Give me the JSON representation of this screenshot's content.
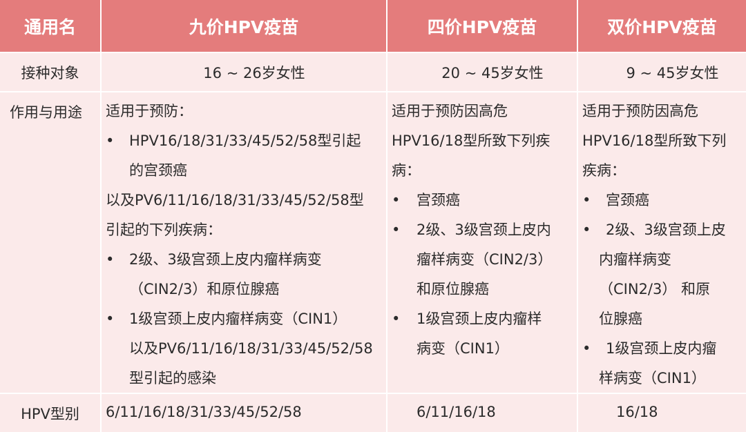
{
  "colors": {
    "header_bg": "#e47c7c",
    "body_bg": "#fbeaea",
    "border": "#ffffff"
  },
  "header": [
    "通用名",
    "九价HPV疫苗",
    "四价HPV疫苗",
    "双价HPV疫苗"
  ],
  "rows": {
    "target": {
      "label": "接种对象",
      "values": [
        "16 ~ 26岁女性",
        "20 ~ 45岁女性",
        "9 ~ 45岁女性"
      ]
    },
    "usage": {
      "label": "作用与用途",
      "columns": [
        [
          {
            "t": "适用于预防：",
            "k": "plain"
          },
          {
            "t": "HPV16/18/31/33/45/52/58型引起",
            "k": "bullet"
          },
          {
            "t": "的宫颈癌",
            "k": "indent"
          },
          {
            "t": "以及PV6/11/16/18/31/33/45/52/58型",
            "k": "plain"
          },
          {
            "t": "引起的下列疾病：",
            "k": "plain"
          },
          {
            "t": "2级、3级宫颈上皮内瘤样病变",
            "k": "bullet"
          },
          {
            "t": "（CIN2/3）和原位腺癌",
            "k": "indent"
          },
          {
            "t": "1级宫颈上皮内瘤样病变（CIN1）",
            "k": "bullet"
          },
          {
            "t": "以及PV6/11/16/18/31/33/45/52/58",
            "k": "indent"
          },
          {
            "t": "型引起的感染",
            "k": "indent"
          }
        ],
        [
          {
            "t": "适用于预防因高危",
            "k": "plain"
          },
          {
            "t": "HPV16/18型所致下列疾",
            "k": "plain"
          },
          {
            "t": "病：",
            "k": "plain"
          },
          {
            "t": "宫颈癌",
            "k": "bullet"
          },
          {
            "t": "2级、3级宫颈上皮内",
            "k": "bullet"
          },
          {
            "t": "瘤样病变（CIN2/3）",
            "k": "indent"
          },
          {
            "t": "和原位腺癌",
            "k": "indent"
          },
          {
            "t": "1级宫颈上皮内瘤样",
            "k": "bullet"
          },
          {
            "t": "病变（CIN1）",
            "k": "indent"
          }
        ],
        [
          {
            "t": "适用于预防因高危",
            "k": "plain"
          },
          {
            "t": "HPV16/18型所致下列",
            "k": "plain"
          },
          {
            "t": "疾病：",
            "k": "plain"
          },
          {
            "t": "宫颈癌",
            "k": "bullet"
          },
          {
            "t": "2级、3级宫颈上皮",
            "k": "bullet"
          },
          {
            "t": "内瘤样病变",
            "k": "indent"
          },
          {
            "t": "（CIN2/3） 和原",
            "k": "indent"
          },
          {
            "t": "位腺癌",
            "k": "indent"
          },
          {
            "t": "1级宫颈上皮内瘤",
            "k": "bullet"
          },
          {
            "t": "样病变（CIN1）",
            "k": "indent"
          }
        ]
      ]
    },
    "types": {
      "label": "HPV型别",
      "values": [
        "6/11/16/18/31/33/45/52/58",
        "6/11/16/18",
        "16/18"
      ]
    }
  }
}
